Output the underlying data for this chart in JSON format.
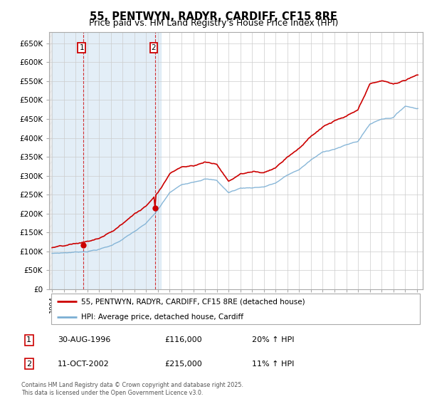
{
  "title": "55, PENTWYN, RADYR, CARDIFF, CF15 8RE",
  "subtitle": "Price paid vs. HM Land Registry's House Price Index (HPI)",
  "ylim": [
    0,
    680000
  ],
  "yticks": [
    0,
    50000,
    100000,
    150000,
    200000,
    250000,
    300000,
    350000,
    400000,
    450000,
    500000,
    550000,
    600000,
    650000
  ],
  "ytick_labels": [
    "£0",
    "£50K",
    "£100K",
    "£150K",
    "£200K",
    "£250K",
    "£300K",
    "£350K",
    "£400K",
    "£450K",
    "£500K",
    "£550K",
    "£600K",
    "£650K"
  ],
  "xlim_start": 1993.75,
  "xlim_end": 2025.5,
  "sale1_year": 1996.66,
  "sale1_price": 116000,
  "sale1_label": "1",
  "sale1_date": "30-AUG-1996",
  "sale1_amount": "£116,000",
  "sale1_hpi": "20% ↑ HPI",
  "sale2_year": 2002.78,
  "sale2_price": 215000,
  "sale2_label": "2",
  "sale2_date": "11-OCT-2002",
  "sale2_amount": "£215,000",
  "sale2_hpi": "11% ↑ HPI",
  "shade_end": 2003.25,
  "red_color": "#cc0000",
  "blue_color": "#7bafd4",
  "background_left_color": "#d8e8f5",
  "grid_color": "#cccccc",
  "legend_line1": "55, PENTWYN, RADYR, CARDIFF, CF15 8RE (detached house)",
  "legend_line2": "HPI: Average price, detached house, Cardiff",
  "footnote": "Contains HM Land Registry data © Crown copyright and database right 2025.\nThis data is licensed under the Open Government Licence v3.0.",
  "hpi_key_years": [
    1994,
    1995,
    1996,
    1997,
    1998,
    1999,
    2000,
    2001,
    2002,
    2003,
    2004,
    2005,
    2006,
    2007,
    2008,
    2009,
    2010,
    2011,
    2012,
    2013,
    2014,
    2015,
    2016,
    2017,
    2018,
    2019,
    2020,
    2021,
    2022,
    2023,
    2024,
    2025
  ],
  "hpi_key_values": [
    95000,
    97000,
    99000,
    102000,
    108000,
    117000,
    135000,
    155000,
    175000,
    210000,
    255000,
    275000,
    285000,
    295000,
    290000,
    258000,
    270000,
    272000,
    275000,
    285000,
    305000,
    320000,
    345000,
    365000,
    375000,
    385000,
    395000,
    440000,
    455000,
    460000,
    490000,
    485000
  ],
  "red_key_years": [
    1994,
    1995,
    1996,
    1997,
    1998,
    1999,
    2000,
    2001,
    2002,
    2003,
    2004,
    2005,
    2006,
    2007,
    2008,
    2009,
    2010,
    2011,
    2012,
    2013,
    2014,
    2015,
    2016,
    2017,
    2018,
    2019,
    2020,
    2021,
    2022,
    2023,
    2024,
    2025
  ],
  "red_key_values": [
    110000,
    112000,
    116000,
    122000,
    130000,
    145000,
    168000,
    195000,
    215000,
    255000,
    305000,
    325000,
    330000,
    340000,
    335000,
    290000,
    310000,
    315000,
    315000,
    330000,
    360000,
    385000,
    415000,
    440000,
    455000,
    465000,
    480000,
    545000,
    555000,
    545000,
    555000,
    570000
  ]
}
